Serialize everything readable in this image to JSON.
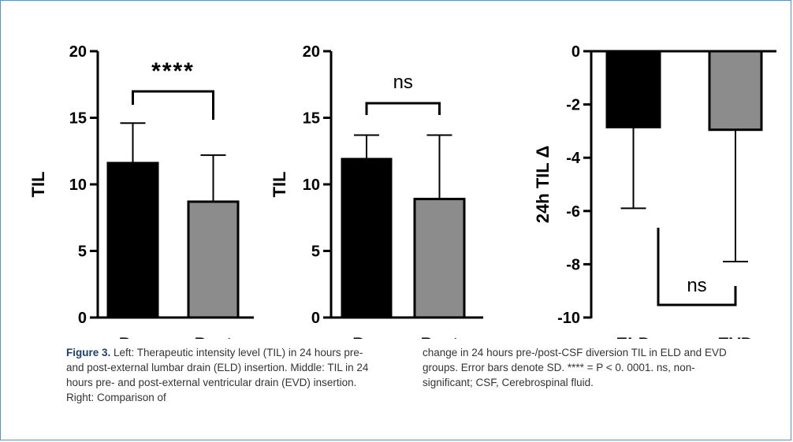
{
  "chart_data": [
    {
      "type": "bar",
      "categories": [
        "Pre",
        "Post"
      ],
      "values": [
        11.6,
        8.7
      ],
      "errors": [
        3.0,
        3.5
      ],
      "colors": [
        "#000000",
        "#8c8c8c"
      ],
      "ylabel": "TIL",
      "ylim": [
        0,
        20
      ],
      "yticks": [
        0,
        5,
        10,
        15,
        20
      ],
      "significance": "****"
    },
    {
      "type": "bar",
      "categories": [
        "Pre",
        "Post"
      ],
      "values": [
        11.9,
        8.9
      ],
      "errors": [
        1.8,
        4.8
      ],
      "colors": [
        "#000000",
        "#8c8c8c"
      ],
      "ylabel": "TIL",
      "ylim": [
        0,
        20
      ],
      "yticks": [
        0,
        5,
        10,
        15,
        20
      ],
      "significance": "ns"
    },
    {
      "type": "bar",
      "categories": [
        "ELD",
        "EVD"
      ],
      "values": [
        -2.85,
        -2.95
      ],
      "errors": [
        3.05,
        4.95
      ],
      "colors": [
        "#000000",
        "#8c8c8c"
      ],
      "ylabel": "24h TIL Δ",
      "ylim": [
        -10,
        0
      ],
      "yticks": [
        "0",
        "-2",
        "-4",
        "-6",
        "-8",
        "-10"
      ],
      "significance": "ns"
    }
  ],
  "caption": {
    "figure_label": "Figure 3.",
    "left_text": " Left: Therapeutic intensity level (TIL) in 24 hours pre- and post-external lumbar drain (ELD) insertion. Middle: TIL in 24 hours pre- and post-external ventricular drain (EVD) insertion. Right: Comparison of",
    "right_text": "change in 24 hours pre-/post-CSF diversion TIL in ELD and EVD groups. Error bars denote SD. **** = P < 0. 0001. ns, non-significant; CSF, Cerebrospinal fluid."
  }
}
